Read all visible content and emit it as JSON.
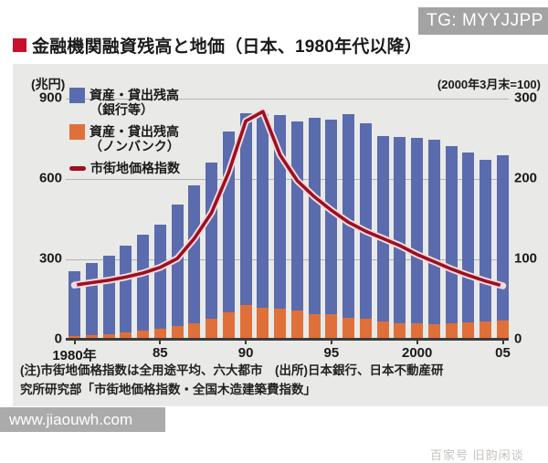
{
  "tg_watermark": "TG: MYYJJPP",
  "title": "金融機関融資残高と地価（日本、1980年代以降）",
  "footer_url": "www.jiaouwh.com",
  "faint_watermark": "百家号 旧韵闲谈",
  "chart_data": {
    "type": "bar",
    "subtype": "stacked-bars-with-line",
    "title": "金融機関融資残高と地価（日本、1980年代以降）",
    "left_axis": {
      "unit_label": "(兆円)",
      "max": 900,
      "ticks": [
        900,
        600,
        300,
        0
      ]
    },
    "right_axis": {
      "unit_label": "(2000年3月末=100)",
      "max": 300,
      "ticks": [
        300,
        200,
        100,
        0
      ]
    },
    "categories": [
      "1980",
      "1981",
      "1982",
      "1983",
      "1984",
      "1985",
      "1986",
      "1987",
      "1988",
      "1989",
      "1990",
      "1991",
      "1992",
      "1993",
      "1994",
      "1995",
      "1996",
      "1997",
      "1998",
      "1999",
      "2000",
      "2001",
      "2002",
      "2003",
      "2004",
      "2005"
    ],
    "x_ticks": [
      {
        "index": 0,
        "label": "1980年"
      },
      {
        "index": 5,
        "label": "85"
      },
      {
        "index": 10,
        "label": "90"
      },
      {
        "index": 15,
        "label": "95"
      },
      {
        "index": 20,
        "label": "2000"
      },
      {
        "index": 25,
        "label": "05"
      }
    ],
    "series": [
      {
        "name": "資産・貸出残高（銀行等）",
        "type": "bar",
        "stack": "top",
        "axis": "left",
        "color": "#5a6cad",
        "values": [
          244,
          269,
          291,
          323,
          358,
          388,
          454,
          514,
          581,
          676,
          719,
          724,
          725,
          707,
          734,
          726,
          761,
          730,
          694,
          696,
          693,
          690,
          661,
          633,
          604,
          619
        ]
      },
      {
        "name": "資産・貸出残高（ノンバンク）",
        "type": "bar",
        "stack": "bottom",
        "axis": "left",
        "color": "#e0703a",
        "values": [
          12,
          16,
          21,
          27,
          34,
          42,
          51,
          63,
          79,
          103,
          128,
          119,
          115,
          108,
          96,
          94,
          82,
          78,
          68,
          62,
          62,
          58,
          61,
          65,
          68,
          71
        ]
      },
      {
        "name": "市街地価格指数",
        "type": "line",
        "axis": "right",
        "color": "#9c1020",
        "values": [
          68,
          71,
          74,
          78,
          83,
          90,
          101,
          126,
          158,
          208,
          272,
          284,
          230,
          198,
          178,
          161,
          146,
          135,
          126,
          117,
          106,
          97,
          88,
          80,
          73,
          67
        ]
      }
    ],
    "legend": [
      {
        "line1": "資産・貸出残高",
        "line2": "（銀行等）"
      },
      {
        "line1": "資産・貸出残高",
        "line2": "（ノンバンク）"
      },
      {
        "line1": "市街地価格指数",
        "line2": ""
      }
    ],
    "note_lines": [
      "(注)市街地価格指数は全用途平均、六大都市　(出所)日本銀行、日本不動産研",
      "究所研究部「市街地価格指数・全国木造建築費指数」"
    ],
    "grid": true,
    "legend_position": "top-left-inside"
  }
}
